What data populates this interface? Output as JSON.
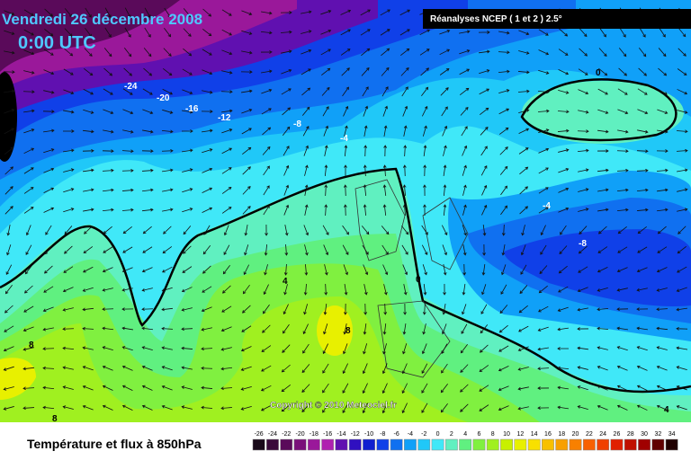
{
  "header": {
    "title": "Vendredi 26 décembre 2008",
    "time": "0:00 UTC",
    "source": "Réanalyses NCEP ( 1 et 2 ) 2.5°"
  },
  "copyright": "Copyright © 2010 Meteociel.fr",
  "caption": "Température et flux à 850hPa",
  "contour_labels": [
    -24,
    -20,
    -16,
    -12,
    -8,
    -4,
    0,
    -4,
    -8,
    4,
    0,
    8,
    8,
    8,
    4
  ],
  "legend": {
    "ticks": [
      -26,
      -24,
      -22,
      -20,
      -18,
      -16,
      -14,
      -12,
      -10,
      -8,
      -6,
      -4,
      -2,
      0,
      2,
      4,
      6,
      8,
      10,
      12,
      14,
      16,
      18,
      20,
      22,
      24,
      26,
      28,
      30,
      32,
      34
    ],
    "colors": [
      "#1a0a1a",
      "#3a0a3a",
      "#5a0a5a",
      "#7a107a",
      "#9a189a",
      "#b020b0",
      "#6010b0",
      "#3010c0",
      "#1020d0",
      "#1040e8",
      "#1070f0",
      "#10a0f8",
      "#20c8f8",
      "#40e8f8",
      "#60f0c0",
      "#60f080",
      "#80f040",
      "#a0f020",
      "#c8f000",
      "#e8f000",
      "#f8e000",
      "#f8c000",
      "#f8a000",
      "#f88000",
      "#f86000",
      "#f04000",
      "#e02000",
      "#c01000",
      "#a00000",
      "#600000",
      "#200000"
    ]
  }
}
